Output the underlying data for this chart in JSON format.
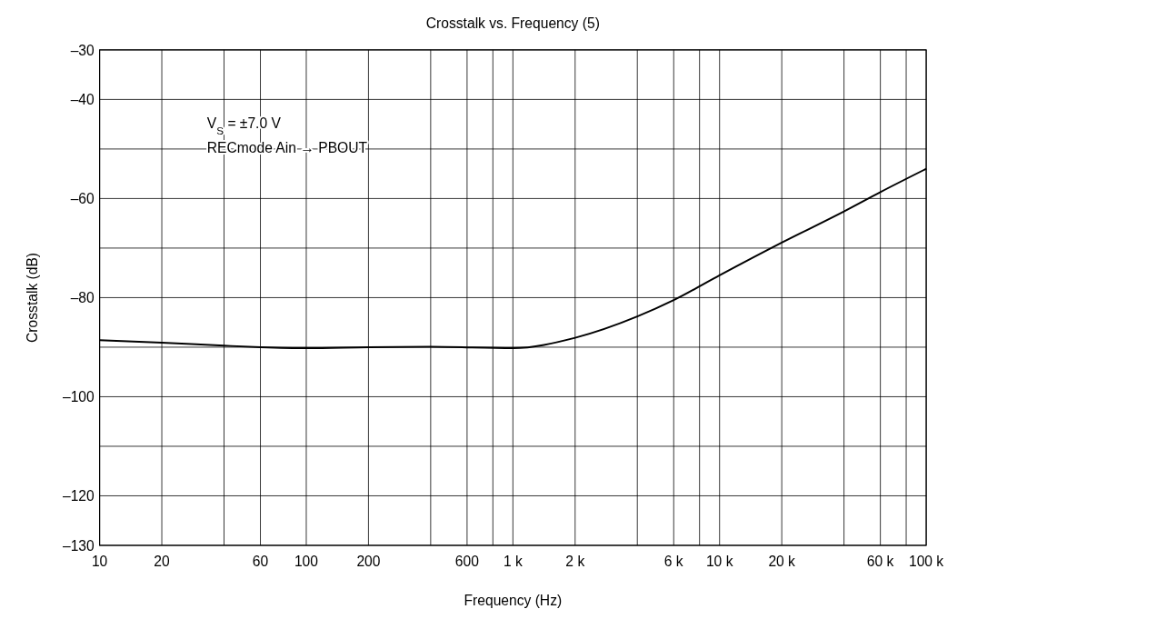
{
  "chart_data": {
    "type": "line",
    "title": "Crosstalk vs. Frequency (5)",
    "xlabel": "Frequency  (Hz)",
    "ylabel": "Crosstalk  (dB)",
    "annotations": [
      "V$_{S}$ = ±7.0 V",
      "RECmode  Ain → PBOUT"
    ],
    "log": "x",
    "grid": true,
    "marker": "none",
    "line_style": "solid",
    "xlim": [
      10,
      100000
    ],
    "ylim": [
      -130,
      -30
    ],
    "xticks": [
      10,
      20,
      {
        "value": 40,
        "label": null
      },
      60,
      100,
      200,
      {
        "value": 400,
        "label": null
      },
      600,
      {
        "value": 800,
        "label": null
      },
      {
        "value": 1000,
        "label": "1 k"
      },
      {
        "value": 2000,
        "label": "2 k"
      },
      {
        "value": 4000,
        "label": null
      },
      {
        "value": 6000,
        "label": "6 k"
      },
      {
        "value": 8000,
        "label": null
      },
      {
        "value": 10000,
        "label": "10 k"
      },
      {
        "value": 20000,
        "label": "20 k"
      },
      {
        "value": 40000,
        "label": null
      },
      {
        "value": 60000,
        "label": "60 k"
      },
      {
        "value": 80000,
        "label": null
      },
      {
        "value": 100000,
        "label": "100 k"
      }
    ],
    "yticks": [
      {
        "value": -130,
        "label": "–130"
      },
      {
        "value": -120,
        "label": "–120"
      },
      {
        "value": -110,
        "label": null
      },
      {
        "value": -100,
        "label": "–100"
      },
      {
        "value": -90,
        "label": null
      },
      {
        "value": -80,
        "label": "–80"
      },
      {
        "value": -70,
        "label": null
      },
      {
        "value": -60,
        "label": "–60"
      },
      {
        "value": -50,
        "label": null
      },
      {
        "value": -40,
        "label": "–40"
      },
      {
        "value": -30,
        "label": "–30"
      }
    ],
    "series": [
      {
        "color": "#000000",
        "x": [
          10,
          20,
          40,
          60,
          100,
          200,
          400,
          1000,
          2000,
          4000,
          6000,
          10000,
          20000,
          40000,
          60000,
          100000
        ],
        "values": [
          -88.6,
          -89.1,
          -89.7,
          -90,
          -90.2,
          -90,
          -89.9,
          -90.2,
          -88.1,
          -83.8,
          -80.5,
          -75.5,
          -68.9,
          -62.6,
          -58.7,
          -54
        ]
      }
    ]
  }
}
